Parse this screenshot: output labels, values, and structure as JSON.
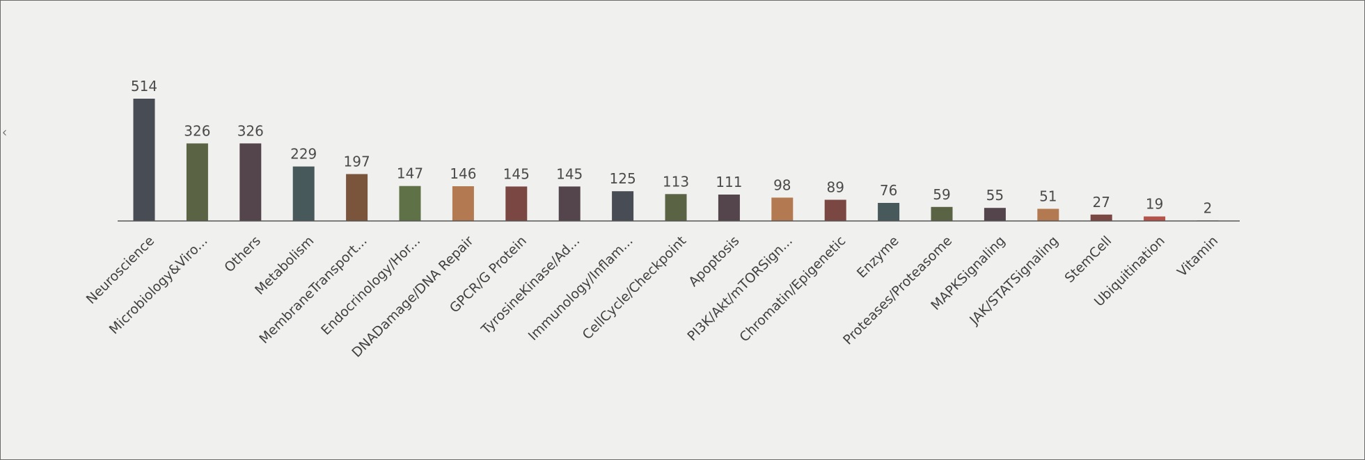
{
  "chart_data": {
    "type": "bar",
    "title": "",
    "xlabel": "",
    "ylabel": "^",
    "ylim": [
      0,
      514
    ],
    "grid": false,
    "legend": "none",
    "categories": [
      "Neuroscience",
      "Microbiology&Viro...",
      "Others",
      "Metabolism",
      "MembraneTransport...",
      "Endocrinology/Hor...",
      "DNADamage/DNA Repair",
      "GPCR/G Protein",
      "TyrosineKinase/Ad...",
      "Immunology/Inflam...",
      "CellCycle/Checkpoint",
      "Apoptosis",
      "PI3K/Akt/mTORSign...",
      "Chromatin/Epigenetic",
      "Enzyme",
      "Proteases/Proteasome",
      "MAPKSignaling",
      "JAK/STATSignaling",
      "StemCell",
      "Ubiquitination",
      "Vitamin"
    ],
    "values": [
      514,
      326,
      326,
      229,
      197,
      147,
      146,
      145,
      145,
      125,
      113,
      111,
      98,
      89,
      76,
      59,
      55,
      51,
      27,
      19,
      2
    ],
    "colors": [
      "#474c55",
      "#5a6444",
      "#54444b",
      "#47595a",
      "#7a553c",
      "#5f7146",
      "#b37a52",
      "#7a4743",
      "#54444b",
      "#474c55",
      "#5a6444",
      "#54444b",
      "#b37a52",
      "#7a4743",
      "#47595a",
      "#5a6444",
      "#54444b",
      "#b37a52",
      "#7a4743",
      "#b5524a",
      "#474c55"
    ]
  }
}
